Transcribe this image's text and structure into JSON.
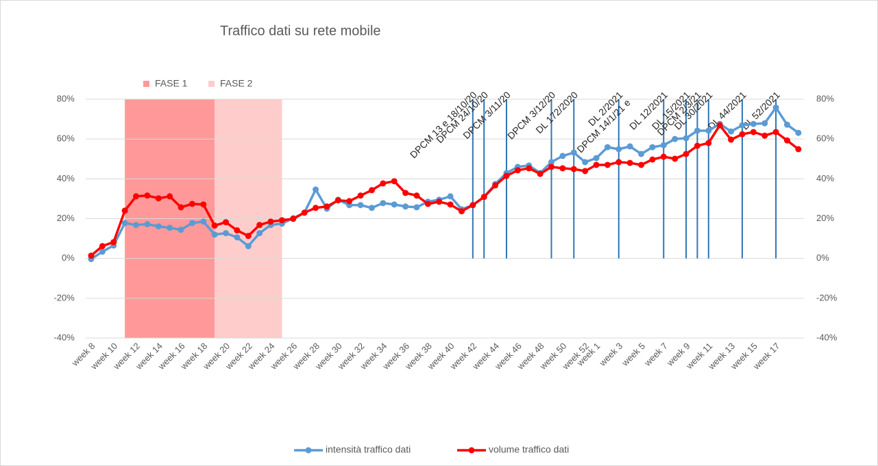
{
  "chart_data": {
    "type": "line",
    "title": "Traffico dati su rete mobile",
    "categories": [
      "week 8",
      null,
      "week 10",
      null,
      "week 12",
      null,
      "week 14",
      null,
      "week 16",
      null,
      "week 18",
      null,
      "week 20",
      null,
      "week 22",
      null,
      "week 24",
      null,
      "week 26",
      null,
      "week 28",
      null,
      "week 30",
      null,
      "week 32",
      null,
      "week 34",
      null,
      "week 36",
      null,
      "week 38",
      null,
      "week 40",
      null,
      "week 42",
      null,
      "week 44",
      null,
      "week 46",
      null,
      "week 48",
      null,
      "week 50",
      null,
      "week 52",
      "week 1",
      null,
      "week 3",
      null,
      "week 5",
      null,
      "week 7",
      null,
      "week 9",
      null,
      "week 11",
      null,
      "week 13",
      null,
      "week 15",
      null,
      "week 17",
      null,
      null
    ],
    "series": [
      {
        "name": "intensità traffico dati",
        "color": "#5b9bd5",
        "values": [
          -0.3,
          3.4,
          6.5,
          17.8,
          16.8,
          17.2,
          16.1,
          15.4,
          14.4,
          17.8,
          18.5,
          12.0,
          12.7,
          10.6,
          6.2,
          12.7,
          16.8,
          17.5,
          20.2,
          23.0,
          34.6,
          25.0,
          29.5,
          26.8,
          26.8,
          25.4,
          27.8,
          27.1,
          26.1,
          25.7,
          28.5,
          29.5,
          31.2,
          24.7,
          26.8,
          30.9,
          37.4,
          42.9,
          46.0,
          46.7,
          42.9,
          48.4,
          51.5,
          53.2,
          48.4,
          50.4,
          55.9,
          54.9,
          56.3,
          52.5,
          55.9,
          56.9,
          60.0,
          60.4,
          64.2,
          64.2,
          67.6,
          63.8,
          66.9,
          67.6,
          67.9,
          75.8,
          67.2,
          63.1
        ]
      },
      {
        "name": "volume traffico dati",
        "color": "#ff0000",
        "values": [
          1.4,
          6.2,
          8.2,
          24.0,
          31.2,
          31.6,
          30.2,
          31.2,
          25.7,
          27.4,
          27.1,
          16.5,
          18.2,
          14.1,
          11.3,
          16.8,
          18.5,
          19.2,
          19.9,
          23.0,
          25.4,
          26.1,
          29.2,
          28.8,
          31.6,
          34.3,
          37.7,
          38.8,
          32.9,
          31.6,
          27.4,
          28.5,
          27.1,
          23.7,
          26.8,
          30.9,
          36.7,
          41.5,
          44.3,
          45.3,
          42.5,
          46.0,
          45.3,
          44.9,
          43.9,
          47.0,
          47.0,
          48.4,
          48.0,
          47.0,
          49.7,
          51.1,
          50.1,
          52.5,
          56.6,
          58.0,
          66.9,
          59.7,
          62.4,
          63.5,
          61.7,
          63.5,
          59.3,
          54.9
        ]
      }
    ],
    "phases": [
      {
        "name": "FASE 1",
        "color": "#ff9999",
        "from": 3,
        "to": 11
      },
      {
        "name": "FASE 2",
        "color": "#ffcccc",
        "from": 11,
        "to": 17
      }
    ],
    "events": [
      {
        "at": 34,
        "label": [
          "DPCM 13 e 18/10/20"
        ]
      },
      {
        "at": 35,
        "label": [
          "DPCM 24/10/20"
        ]
      },
      {
        "at": 37,
        "label": [
          "DPCM 3/11/20"
        ]
      },
      {
        "at": 41,
        "label": [
          "DPCM 3/12/20"
        ]
      },
      {
        "at": 43,
        "label": [
          "DL 172/2020"
        ]
      },
      {
        "at": 47,
        "label": [
          "DPCM 14/1/21 e",
          "DL 2/2021"
        ]
      },
      {
        "at": 51,
        "label": [
          "DL 12/2021"
        ]
      },
      {
        "at": 53,
        "label": [
          "DL 15/2021"
        ]
      },
      {
        "at": 54,
        "label": [
          "DPCM 2/3/21"
        ]
      },
      {
        "at": 55,
        "label": [
          "DL 30/2021"
        ]
      },
      {
        "at": 58,
        "label": [
          "DL 44/2021"
        ]
      },
      {
        "at": 61,
        "label": [
          "DL 52/2021"
        ]
      }
    ],
    "event_color": "#2e75b6",
    "ylim": [
      -40,
      80
    ],
    "yticks": [
      {
        "value": -40,
        "label": "-40%"
      },
      {
        "value": -20,
        "label": "-20%"
      },
      {
        "value": 0,
        "label": "0%"
      },
      {
        "value": 20,
        "label": "20%"
      },
      {
        "value": 40,
        "label": "40%"
      },
      {
        "value": 60,
        "label": "60%"
      },
      {
        "value": 80,
        "label": "80%"
      }
    ],
    "y2lim": [
      -40,
      80
    ],
    "y2ticks": [
      {
        "value": -40,
        "label": "-40%"
      },
      {
        "value": -20,
        "label": "-20%"
      },
      {
        "value": 0,
        "label": "0%"
      },
      {
        "value": 20,
        "label": "20%"
      },
      {
        "value": 40,
        "label": "40%"
      },
      {
        "value": 60,
        "label": "60%"
      },
      {
        "value": 80,
        "label": "80%"
      }
    ],
    "grid": true
  }
}
